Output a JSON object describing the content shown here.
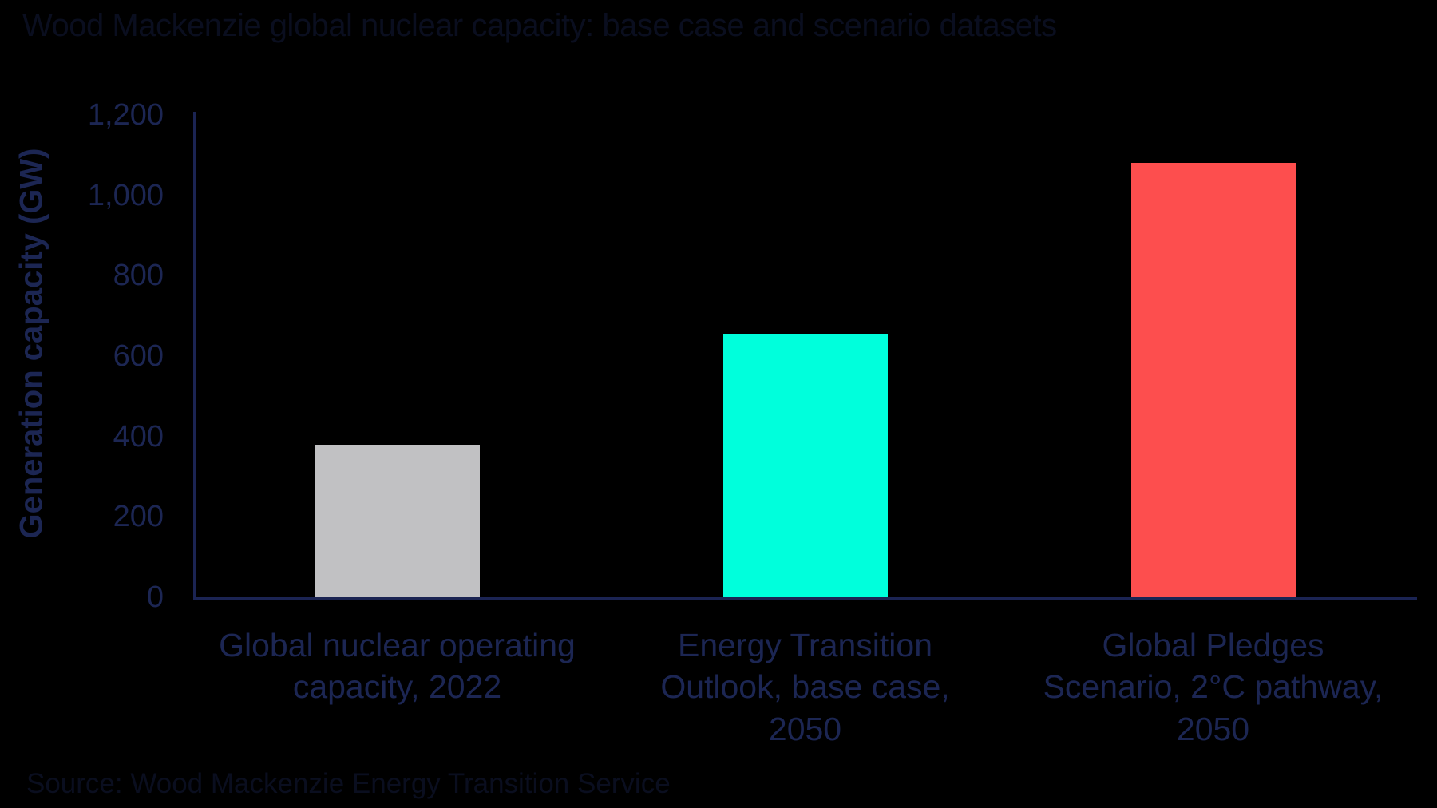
{
  "colors": {
    "background": "#000000",
    "text_navy": "#1c2653",
    "axis_navy": "#1b2453",
    "faint_dark_text": "#0a0e1f",
    "bar_gray": "#c1c1c3",
    "bar_teal": "#00ffdc",
    "bar_red": "#fd4e4e"
  },
  "chart_data": {
    "type": "bar",
    "title": "Wood Mackenzie global nuclear capacity: base case and scenario datasets",
    "source_note": "Source: Wood Mackenzie Energy Transition Service",
    "xlabel": "",
    "ylabel": "Generation capacity (GW)",
    "categories": [
      "Global nuclear operating capacity, 2022",
      "Energy Transition Outlook, base case, 2050",
      "Global Pledges Scenario, 2°C pathway, 2050"
    ],
    "category_lines": [
      [
        "Global nuclear operating",
        "capacity, 2022"
      ],
      [
        "Energy Transition",
        "Outlook, base case,",
        "2050"
      ],
      [
        "Global Pledges",
        "Scenario, 2°C pathway,",
        "2050"
      ]
    ],
    "values": [
      380,
      655,
      1080
    ],
    "bar_colors": [
      "#c1c1c3",
      "#00ffdc",
      "#fd4e4e"
    ],
    "ylim": [
      0,
      1200
    ],
    "yticks": [
      {
        "value": 0,
        "label": "0"
      },
      {
        "value": 200,
        "label": "200"
      },
      {
        "value": 400,
        "label": "400"
      },
      {
        "value": 600,
        "label": "600"
      },
      {
        "value": 800,
        "label": "800"
      },
      {
        "value": 1000,
        "label": "1,000"
      },
      {
        "value": 1200,
        "label": "1,200"
      }
    ],
    "grid": false,
    "legend": false
  }
}
